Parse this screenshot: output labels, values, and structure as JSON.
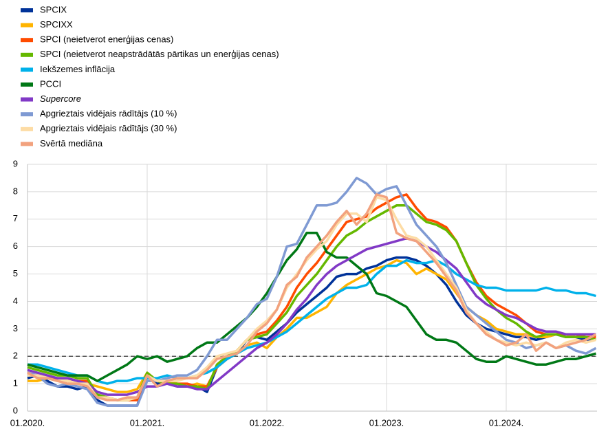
{
  "chart_data": {
    "type": "line",
    "categories": [
      "01.2020.",
      null,
      null,
      null,
      null,
      null,
      null,
      null,
      null,
      null,
      null,
      null,
      "01.2021.",
      null,
      null,
      null,
      null,
      null,
      null,
      null,
      null,
      null,
      null,
      null,
      "01.2022.",
      null,
      null,
      null,
      null,
      null,
      null,
      null,
      null,
      null,
      null,
      null,
      "01.2023.",
      null,
      null,
      null,
      null,
      null,
      null,
      null,
      null,
      null,
      null,
      null,
      "01.2024.",
      null,
      null,
      null,
      null,
      null,
      null,
      null,
      null,
      null
    ],
    "ylim": [
      0,
      9
    ],
    "yticks": [
      0,
      1,
      2,
      3,
      4,
      5,
      6,
      7,
      8,
      9
    ],
    "grid": true,
    "reference_line": 2,
    "legend": "top-left",
    "series": [
      {
        "name": "SPCIX",
        "color": "#003299",
        "values": [
          1.2,
          1.3,
          1.1,
          0.9,
          0.9,
          0.8,
          0.9,
          0.4,
          0.2,
          0.2,
          0.2,
          0.2,
          1.3,
          1.0,
          1.0,
          0.9,
          0.9,
          0.9,
          0.7,
          1.6,
          1.9,
          2.1,
          2.6,
          2.7,
          2.6,
          2.9,
          3.2,
          3.6,
          3.9,
          4.2,
          4.5,
          4.9,
          5.0,
          5.0,
          5.2,
          5.3,
          5.5,
          5.6,
          5.6,
          5.5,
          5.3,
          5.0,
          4.6,
          4.0,
          3.5,
          3.2,
          3.0,
          2.9,
          2.8,
          2.7,
          2.7,
          2.6,
          2.7,
          2.8,
          2.7,
          2.7,
          2.6,
          2.6
        ]
      },
      {
        "name": "SPCIXX",
        "color": "#ffb400",
        "values": [
          1.1,
          1.1,
          1.2,
          1.1,
          1.1,
          1.0,
          1.0,
          0.9,
          0.8,
          0.7,
          0.7,
          0.8,
          1.4,
          1.1,
          1.1,
          1.0,
          0.9,
          1.0,
          0.9,
          1.6,
          1.9,
          2.1,
          2.4,
          2.5,
          2.3,
          2.7,
          3.0,
          3.4,
          3.4,
          3.6,
          3.8,
          4.3,
          4.6,
          4.8,
          5.0,
          5.2,
          5.3,
          5.5,
          5.4,
          5.0,
          5.2,
          5.0,
          4.8,
          4.3,
          3.8,
          3.5,
          3.3,
          3.0,
          2.9,
          2.8,
          2.8,
          2.7,
          2.7,
          2.8,
          2.8,
          2.7,
          2.7,
          2.6
        ]
      },
      {
        "name": "SPCI (neietverot enerģijas cenas)",
        "color": "#ff4b00",
        "values": [
          1.4,
          1.3,
          1.2,
          1.2,
          1.2,
          1.1,
          1.1,
          0.6,
          0.5,
          0.4,
          0.4,
          0.4,
          1.4,
          1.1,
          1.0,
          1.0,
          1.0,
          0.9,
          0.9,
          1.6,
          1.9,
          2.2,
          2.6,
          2.8,
          2.9,
          3.3,
          3.8,
          4.5,
          5.0,
          5.4,
          5.9,
          6.4,
          6.9,
          7.0,
          7.1,
          7.4,
          7.6,
          7.8,
          7.9,
          7.4,
          7.0,
          6.9,
          6.7,
          6.2,
          5.4,
          4.7,
          4.2,
          3.9,
          3.7,
          3.5,
          3.2,
          2.9,
          2.8,
          2.8,
          2.8,
          2.8,
          2.7,
          2.7
        ]
      },
      {
        "name": "SPCI (neietverot neapstrādātās pārtikas un enerģijas cenas)",
        "color": "#65b800",
        "values": [
          1.6,
          1.5,
          1.4,
          1.3,
          1.3,
          1.2,
          1.2,
          0.6,
          0.5,
          0.4,
          0.4,
          0.5,
          1.4,
          1.1,
          1.0,
          1.0,
          0.9,
          0.9,
          0.8,
          1.7,
          2.0,
          2.2,
          2.6,
          2.7,
          2.8,
          3.2,
          3.6,
          4.2,
          4.6,
          5.0,
          5.5,
          6.0,
          6.4,
          6.6,
          6.9,
          7.1,
          7.3,
          7.5,
          7.5,
          7.2,
          6.9,
          6.8,
          6.6,
          6.2,
          5.4,
          4.6,
          4.1,
          3.7,
          3.4,
          3.2,
          2.9,
          2.7,
          2.8,
          2.8,
          2.7,
          2.7,
          2.7,
          2.6
        ]
      },
      {
        "name": "Iekšzemes inflācija",
        "color": "#00b1ea",
        "values": [
          1.7,
          1.7,
          1.6,
          1.5,
          1.4,
          1.3,
          1.3,
          1.1,
          1.0,
          1.1,
          1.1,
          1.2,
          1.2,
          1.2,
          1.3,
          1.2,
          1.2,
          1.3,
          1.4,
          1.6,
          1.9,
          2.1,
          2.3,
          2.4,
          2.5,
          2.7,
          2.9,
          3.2,
          3.5,
          3.8,
          4.1,
          4.3,
          4.5,
          4.5,
          4.6,
          5.0,
          5.3,
          5.3,
          5.5,
          5.4,
          5.4,
          5.5,
          5.3,
          5.0,
          4.8,
          4.6,
          4.5,
          4.5,
          4.4,
          4.4,
          4.4,
          4.4,
          4.5,
          4.4,
          4.4,
          4.3,
          4.3,
          4.2
        ]
      },
      {
        "name": "PCCI",
        "color": "#007816",
        "values": [
          1.7,
          1.6,
          1.5,
          1.4,
          1.3,
          1.3,
          1.3,
          1.1,
          1.3,
          1.5,
          1.7,
          2.0,
          1.9,
          2.0,
          1.8,
          1.9,
          2.0,
          2.3,
          2.5,
          2.5,
          2.8,
          3.1,
          3.4,
          3.8,
          4.3,
          4.9,
          5.5,
          5.9,
          6.5,
          6.5,
          5.8,
          5.6,
          5.6,
          5.3,
          5.0,
          4.3,
          4.2,
          4.0,
          3.8,
          3.3,
          2.8,
          2.6,
          2.6,
          2.5,
          2.2,
          1.9,
          1.8,
          1.8,
          2.0,
          1.9,
          1.8,
          1.7,
          1.7,
          1.8,
          1.9,
          1.9,
          2.0,
          2.1
        ]
      },
      {
        "name": "Supercore",
        "color": "#8139c6",
        "italic": true,
        "values": [
          1.5,
          1.4,
          1.3,
          1.2,
          1.2,
          1.1,
          1.0,
          0.7,
          0.6,
          0.6,
          0.6,
          0.7,
          0.9,
          0.9,
          1.0,
          0.9,
          0.9,
          0.8,
          0.8,
          1.1,
          1.4,
          1.7,
          2.0,
          2.3,
          2.5,
          2.8,
          3.2,
          3.7,
          4.1,
          4.6,
          5.0,
          5.3,
          5.5,
          5.7,
          5.9,
          6.0,
          6.1,
          6.2,
          6.3,
          6.2,
          6.0,
          5.8,
          5.5,
          5.2,
          4.7,
          4.2,
          3.9,
          3.7,
          3.5,
          3.4,
          3.2,
          3.0,
          2.9,
          2.9,
          2.8,
          2.8,
          2.8,
          2.8
        ]
      },
      {
        "name": "Apgrieztais vidējais rādītājs (10 %)",
        "color": "#7f9ad3",
        "values": [
          1.4,
          1.3,
          1.0,
          0.9,
          1.0,
          0.9,
          0.8,
          0.3,
          0.2,
          0.2,
          0.2,
          0.2,
          1.1,
          1.1,
          1.2,
          1.3,
          1.3,
          1.5,
          2.0,
          2.6,
          2.6,
          3.0,
          3.4,
          3.9,
          4.1,
          4.9,
          6.0,
          6.1,
          6.8,
          7.5,
          7.5,
          7.6,
          8.0,
          8.5,
          8.3,
          7.9,
          8.1,
          8.2,
          7.5,
          6.8,
          6.4,
          6.0,
          5.4,
          4.6,
          3.8,
          3.5,
          3.2,
          2.9,
          2.6,
          2.5,
          2.3,
          2.4,
          2.5,
          2.3,
          2.4,
          2.2,
          2.1,
          2.3
        ]
      },
      {
        "name": "Apgrieztais vidējais rādītājs (30 %)",
        "color": "#fddca5",
        "values": [
          1.3,
          1.3,
          1.2,
          1.1,
          1.1,
          1.0,
          1.0,
          0.5,
          0.5,
          0.4,
          0.4,
          0.5,
          1.3,
          1.1,
          1.1,
          1.1,
          1.2,
          1.3,
          1.6,
          2.0,
          2.1,
          2.2,
          2.6,
          3.0,
          3.3,
          3.7,
          4.5,
          5.0,
          5.5,
          5.9,
          6.2,
          6.8,
          7.2,
          7.2,
          6.9,
          7.8,
          7.7,
          7.0,
          6.4,
          6.3,
          6.0,
          5.5,
          5.0,
          4.5,
          3.7,
          3.2,
          2.9,
          2.6,
          2.5,
          2.4,
          2.5,
          2.4,
          2.5,
          2.3,
          2.5,
          2.6,
          2.5,
          2.6
        ]
      },
      {
        "name": "Svērtā mediāna",
        "color": "#f2a27e",
        "values": [
          1.4,
          1.2,
          1.2,
          1.1,
          1.0,
          1.0,
          0.9,
          0.5,
          0.4,
          0.4,
          0.5,
          0.5,
          1.3,
          0.9,
          1.1,
          1.2,
          1.2,
          1.2,
          1.5,
          1.9,
          2.0,
          2.1,
          2.4,
          2.9,
          3.2,
          3.7,
          4.6,
          4.9,
          5.6,
          6.0,
          6.4,
          6.9,
          7.3,
          6.8,
          7.2,
          7.9,
          7.8,
          6.5,
          6.3,
          6.2,
          5.8,
          5.4,
          4.9,
          4.4,
          3.6,
          3.2,
          2.8,
          2.6,
          2.4,
          2.5,
          2.8,
          2.2,
          2.5,
          2.3,
          2.4,
          2.5,
          2.6,
          2.8
        ]
      }
    ]
  }
}
